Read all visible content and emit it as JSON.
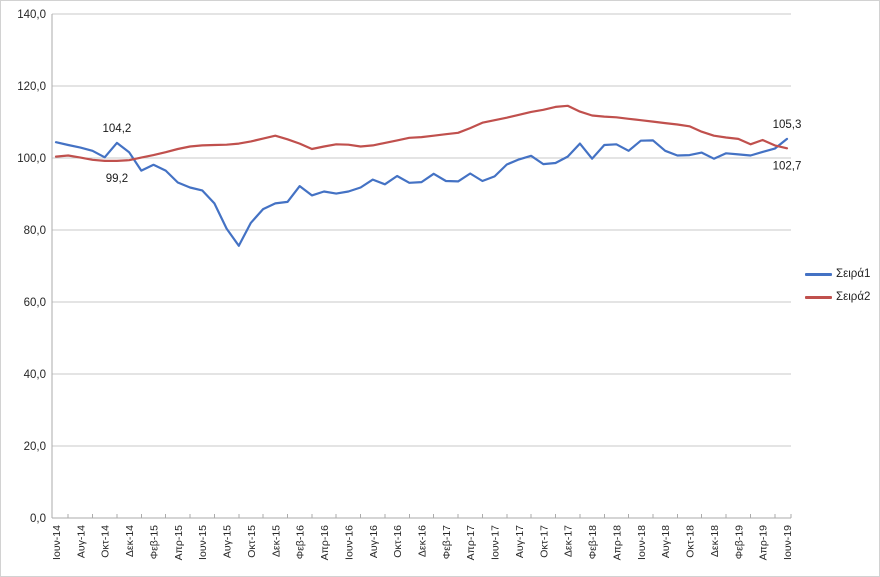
{
  "chart_data": {
    "type": "line",
    "title": "",
    "xlabel": "",
    "ylabel": "",
    "ylim": [
      0,
      140
    ],
    "y_tick_step": 20,
    "y_tick_labels": [
      "0,0",
      "20,0",
      "40,0",
      "60,0",
      "80,0",
      "100,0",
      "120,0",
      "140,0"
    ],
    "number_format": "comma-decimal",
    "grid": true,
    "legend_position": "right",
    "x": [
      "Ιουν-14",
      "Ιουλ-14",
      "Αυγ-14",
      "Σεπ-14",
      "Οκτ-14",
      "Νοε-14",
      "Δεκ-14",
      "Ιαν-15",
      "Φεβ-15",
      "Μαρ-15",
      "Απρ-15",
      "Μαϊ-15",
      "Ιουν-15",
      "Ιουλ-15",
      "Αυγ-15",
      "Σεπ-15",
      "Οκτ-15",
      "Νοε-15",
      "Δεκ-15",
      "Ιαν-16",
      "Φεβ-16",
      "Μαρ-16",
      "Απρ-16",
      "Μαϊ-16",
      "Ιουν-16",
      "Ιουλ-16",
      "Αυγ-16",
      "Σεπ-16",
      "Οκτ-16",
      "Νοε-16",
      "Δεκ-16",
      "Ιαν-17",
      "Φεβ-17",
      "Μαρ-17",
      "Απρ-17",
      "Μαϊ-17",
      "Ιουν-17",
      "Ιουλ-17",
      "Αυγ-17",
      "Σεπ-17",
      "Οκτ-17",
      "Νοε-17",
      "Δεκ-17",
      "Ιαν-18",
      "Φεβ-18",
      "Μαρ-18",
      "Απρ-18",
      "Μαϊ-18",
      "Ιουν-18",
      "Ιουλ-18",
      "Αυγ-18",
      "Σεπ-18",
      "Οκτ-18",
      "Νοε-18",
      "Δεκ-18",
      "Ιαν-19",
      "Φεβ-19",
      "Μαρ-19",
      "Απρ-19",
      "Μαϊ-19",
      "Ιουν-19"
    ],
    "x_tick_labels": [
      "Ιουν-14",
      "Αυγ-14",
      "Οκτ-14",
      "Δεκ-14",
      "Φεβ-15",
      "Απρ-15",
      "Ιουν-15",
      "Αυγ-15",
      "Οκτ-15",
      "Δεκ-15",
      "Φεβ-16",
      "Απρ-16",
      "Ιουν-16",
      "Αυγ-16",
      "Οκτ-16",
      "Δεκ-16",
      "Φεβ-17",
      "Απρ-17",
      "Ιουν-17",
      "Αυγ-17",
      "Οκτ-17",
      "Δεκ-17",
      "Φεβ-18",
      "Απρ-18",
      "Ιουν-18",
      "Αυγ-18",
      "Οκτ-18",
      "Δεκ-18",
      "Φεβ-19",
      "Απρ-19",
      "Ιουν-19"
    ],
    "series": [
      {
        "name": "Σειρά1",
        "color": "#4472C4",
        "values": [
          104.4,
          103.6,
          102.9,
          102.0,
          100.2,
          104.2,
          101.6,
          96.5,
          98.1,
          96.5,
          93.2,
          91.8,
          91.0,
          87.4,
          80.4,
          75.6,
          82.0,
          85.8,
          87.4,
          87.8,
          92.2,
          89.6,
          90.7,
          90.1,
          90.7,
          91.8,
          94.0,
          92.7,
          95.0,
          93.1,
          93.3,
          95.6,
          93.6,
          93.5,
          95.7,
          93.6,
          94.9,
          98.2,
          99.6,
          100.6,
          98.3,
          98.6,
          100.4,
          104.0,
          99.8,
          103.6,
          103.8,
          102.0,
          104.8,
          104.9,
          102.0,
          100.7,
          100.8,
          101.5,
          99.8,
          101.3,
          101.0,
          100.7,
          101.7,
          102.6,
          105.3
        ]
      },
      {
        "name": "Σειρά2",
        "color": "#C0504D",
        "values": [
          100.4,
          100.7,
          100.1,
          99.5,
          99.2,
          99.2,
          99.4,
          100.1,
          100.8,
          101.6,
          102.5,
          103.2,
          103.5,
          103.6,
          103.7,
          104.0,
          104.6,
          105.4,
          106.2,
          105.2,
          104.0,
          102.5,
          103.2,
          103.8,
          103.7,
          103.2,
          103.5,
          104.2,
          104.9,
          105.6,
          105.8,
          106.2,
          106.6,
          107.0,
          108.3,
          109.8,
          110.5,
          111.2,
          112.0,
          112.8,
          113.4,
          114.2,
          114.5,
          112.9,
          111.8,
          111.5,
          111.3,
          110.9,
          110.5,
          110.1,
          109.7,
          109.3,
          108.8,
          107.3,
          106.2,
          105.7,
          105.3,
          103.8,
          105.0,
          103.5,
          102.7
        ]
      }
    ],
    "annotations": [
      {
        "series": "Σειρά1",
        "at": "Νοε-14",
        "label": "104,2",
        "placement": "above"
      },
      {
        "series": "Σειρά2",
        "at": "Νοε-14",
        "label": "99,2",
        "placement": "below"
      },
      {
        "series": "Σειρά1",
        "at": "Ιουν-19",
        "label": "105,3",
        "placement": "above"
      },
      {
        "series": "Σειρά2",
        "at": "Ιουν-19",
        "label": "102,7",
        "placement": "below"
      }
    ],
    "colors": {
      "grid": "#C9C9C9",
      "axis": "#ABABAB",
      "text": "#262626",
      "background": "#FFFFFF"
    }
  },
  "legend": {
    "items": [
      {
        "label": "Σειρά1"
      },
      {
        "label": "Σειρά2"
      }
    ]
  }
}
